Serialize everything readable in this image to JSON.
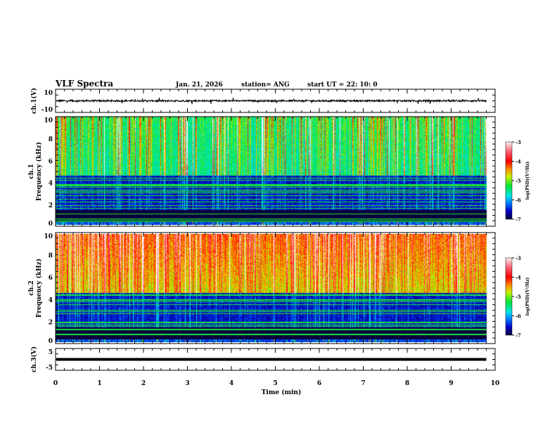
{
  "header": {
    "title": "VLF Spectra",
    "date": "Jan. 21, 2026",
    "station": "station= ANG",
    "start": "start  UT =   22: 10: 0"
  },
  "chart_data": [
    {
      "type": "line",
      "name": "ch1-waveform",
      "ylabel": "ch.1(V)",
      "ylim": [
        -10,
        10
      ],
      "ytick_labels": [
        "10",
        "-10"
      ],
      "xlim": [
        0,
        10
      ],
      "data_end_min": 9.8,
      "baseline_value": 0,
      "noise_amplitude_V": 1.5
    },
    {
      "type": "heatmap",
      "name": "ch1-spectrogram",
      "ylabel": "ch.1\nFrequency (kHz)",
      "ylabel_lines": [
        "ch.1",
        "Frequency (kHz)"
      ],
      "ylim": [
        0,
        10
      ],
      "ytick_labels": [
        "0",
        "2",
        "4",
        "6",
        "8",
        "10"
      ],
      "xlim": [
        0,
        10
      ],
      "colorbar": {
        "label": "log(PSD)(V²/Hz)",
        "range": [
          -7,
          -3
        ],
        "tick_labels": [
          "-3",
          "-4",
          "-5",
          "-6",
          "-7"
        ]
      }
    },
    {
      "type": "heatmap",
      "name": "ch2-spectrogram",
      "ylabel_lines": [
        "ch.2",
        "Frequency (kHz)"
      ],
      "ylim": [
        0,
        10
      ],
      "ytick_labels": [
        "0",
        "2",
        "4",
        "6",
        "8",
        "10"
      ],
      "xlim": [
        0,
        10
      ],
      "colorbar": {
        "label": "log(PSD)(V²/Hz)",
        "range": [
          -7,
          -3
        ],
        "tick_labels": [
          "-3",
          "-4",
          "-5",
          "-6",
          "-7"
        ]
      }
    },
    {
      "type": "line",
      "name": "ch3-waveform",
      "ylabel": "ch.3(V)",
      "ylim": [
        -5,
        5
      ],
      "ytick_labels": [
        "5",
        "-5"
      ],
      "constant_value": 0,
      "data_end_min": 9.8
    }
  ],
  "xaxis": {
    "label": "Time (min)",
    "range": [
      0,
      10
    ],
    "tick_labels": [
      "0",
      "1",
      "2",
      "3",
      "4",
      "5",
      "6",
      "7",
      "8",
      "9",
      "10"
    ]
  },
  "colors": {
    "background": "#ffffff",
    "axes": "#000000"
  }
}
